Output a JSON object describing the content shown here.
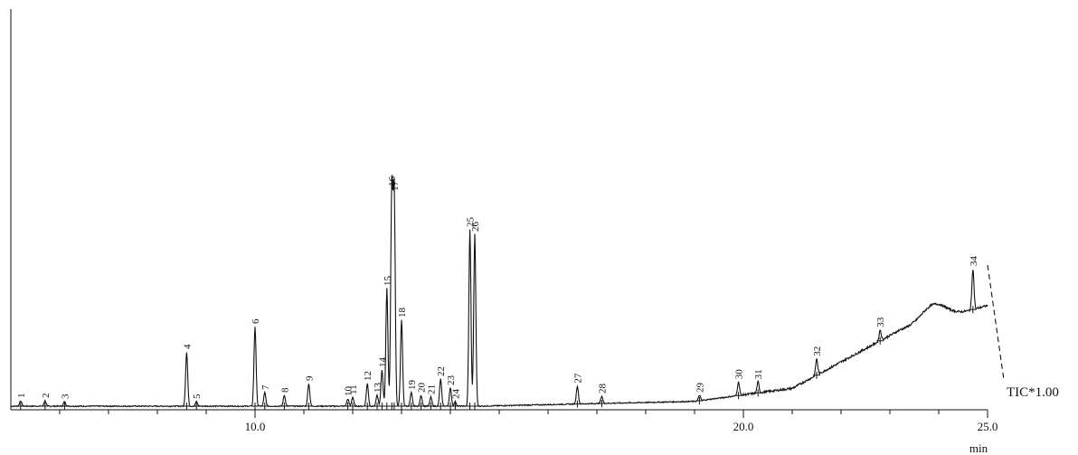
{
  "chart_data": {
    "type": "line",
    "title": "",
    "xlabel": "min",
    "ylabel": "",
    "xlim": [
      5.0,
      25.0
    ],
    "x_tick_labels": [
      {
        "x": 10.0,
        "label": "10.0"
      },
      {
        "x": 20.0,
        "label": "20.0"
      },
      {
        "x": 25.0,
        "label": "25.0"
      }
    ],
    "x_minor_ticks": [
      6,
      7,
      8,
      9,
      11,
      12,
      13,
      14,
      15,
      16,
      17,
      18,
      19,
      21,
      22,
      23,
      24
    ],
    "grid": false,
    "trace_label": "TIC*1.00",
    "peaks": [
      {
        "label": "1",
        "rt": 5.2,
        "height": 6
      },
      {
        "label": "2",
        "rt": 5.7,
        "height": 6
      },
      {
        "label": "3",
        "rt": 6.1,
        "height": 5
      },
      {
        "label": "4",
        "rt": 8.6,
        "height": 60
      },
      {
        "label": "5",
        "rt": 8.8,
        "height": 5
      },
      {
        "label": "6",
        "rt": 10.0,
        "height": 88
      },
      {
        "label": "7",
        "rt": 10.2,
        "height": 15
      },
      {
        "label": "8",
        "rt": 10.6,
        "height": 12
      },
      {
        "label": "9",
        "rt": 11.1,
        "height": 25
      },
      {
        "label": "10",
        "rt": 11.9,
        "height": 8
      },
      {
        "label": "11",
        "rt": 12.0,
        "height": 10
      },
      {
        "label": "12",
        "rt": 12.3,
        "height": 25
      },
      {
        "label": "13",
        "rt": 12.5,
        "height": 12
      },
      {
        "label": "14",
        "rt": 12.6,
        "height": 40
      },
      {
        "label": "15",
        "rt": 12.7,
        "height": 130
      },
      {
        "label": "16",
        "rt": 12.8,
        "height": 240
      },
      {
        "label": "17",
        "rt": 12.85,
        "height": 235
      },
      {
        "label": "18",
        "rt": 13.0,
        "height": 95
      },
      {
        "label": "19",
        "rt": 13.2,
        "height": 15
      },
      {
        "label": "20",
        "rt": 13.4,
        "height": 12
      },
      {
        "label": "21",
        "rt": 13.6,
        "height": 10
      },
      {
        "label": "22",
        "rt": 13.8,
        "height": 30
      },
      {
        "label": "23",
        "rt": 14.0,
        "height": 20
      },
      {
        "label": "24",
        "rt": 14.1,
        "height": 5
      },
      {
        "label": "25",
        "rt": 14.4,
        "height": 195
      },
      {
        "label": "26",
        "rt": 14.5,
        "height": 190
      },
      {
        "label": "27",
        "rt": 16.6,
        "height": 20
      },
      {
        "label": "28",
        "rt": 17.1,
        "height": 8
      },
      {
        "label": "29",
        "rt": 19.1,
        "height": 6
      },
      {
        "label": "30",
        "rt": 19.9,
        "height": 15
      },
      {
        "label": "31",
        "rt": 20.3,
        "height": 12
      },
      {
        "label": "32",
        "rt": 21.5,
        "height": 18
      },
      {
        "label": "33",
        "rt": 22.8,
        "height": 12
      },
      {
        "label": "34",
        "rt": 24.7,
        "height": 45
      }
    ]
  }
}
